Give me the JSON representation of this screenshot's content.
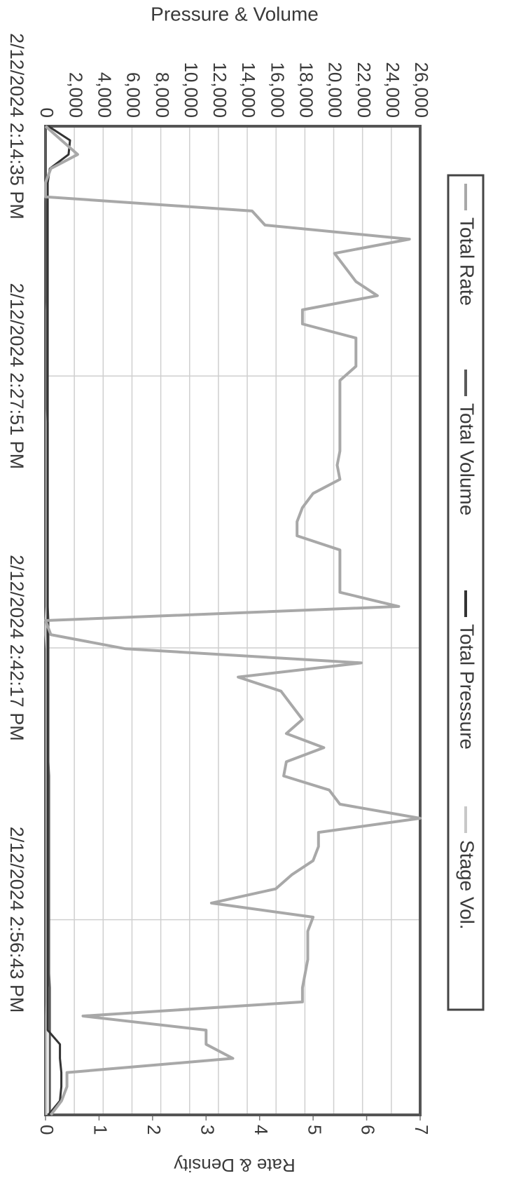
{
  "chart_data": {
    "type": "line",
    "ylabel": "Pressure & Volume",
    "y2label": "Rate & Density",
    "x": [
      "2/12/2024 2:14:35 PM",
      "2/12/2024 2:15:20 PM",
      "2/12/2024 2:16:05 PM",
      "2/12/2024 2:16:50 PM",
      "2/12/2024 2:17:35 PM",
      "2/12/2024 2:18:20 PM",
      "2/12/2024 2:19:05 PM",
      "2/12/2024 2:19:50 PM",
      "2/12/2024 2:20:35 PM",
      "2/12/2024 2:21:20 PM",
      "2/12/2024 2:22:05 PM",
      "2/12/2024 2:22:50 PM",
      "2/12/2024 2:23:35 PM",
      "2/12/2024 2:24:20 PM",
      "2/12/2024 2:25:05 PM",
      "2/12/2024 2:25:50 PM",
      "2/12/2024 2:26:35 PM",
      "2/12/2024 2:27:20 PM",
      "2/12/2024 2:28:05 PM",
      "2/12/2024 2:28:50 PM",
      "2/12/2024 2:29:35 PM",
      "2/12/2024 2:30:20 PM",
      "2/12/2024 2:31:05 PM",
      "2/12/2024 2:31:50 PM",
      "2/12/2024 2:32:35 PM",
      "2/12/2024 2:33:20 PM",
      "2/12/2024 2:34:05 PM",
      "2/12/2024 2:34:50 PM",
      "2/12/2024 2:35:35 PM",
      "2/12/2024 2:36:20 PM",
      "2/12/2024 2:37:05 PM",
      "2/12/2024 2:37:50 PM",
      "2/12/2024 2:38:35 PM",
      "2/12/2024 2:39:20 PM",
      "2/12/2024 2:40:05 PM",
      "2/12/2024 2:40:50 PM",
      "2/12/2024 2:41:35 PM",
      "2/12/2024 2:42:20 PM",
      "2/12/2024 2:43:05 PM",
      "2/12/2024 2:43:50 PM",
      "2/12/2024 2:44:35 PM",
      "2/12/2024 2:45:20 PM",
      "2/12/2024 2:46:05 PM",
      "2/12/2024 2:46:50 PM",
      "2/12/2024 2:47:35 PM",
      "2/12/2024 2:48:20 PM",
      "2/12/2024 2:49:05 PM",
      "2/12/2024 2:49:50 PM",
      "2/12/2024 2:50:35 PM",
      "2/12/2024 2:51:20 PM",
      "2/12/2024 2:52:05 PM",
      "2/12/2024 2:52:50 PM",
      "2/12/2024 2:53:35 PM",
      "2/12/2024 2:54:20 PM",
      "2/12/2024 2:55:05 PM",
      "2/12/2024 2:55:50 PM",
      "2/12/2024 2:56:35 PM",
      "2/12/2024 2:57:20 PM",
      "2/12/2024 2:58:05 PM",
      "2/12/2024 2:58:50 PM",
      "2/12/2024 2:59:35 PM",
      "2/12/2024 3:00:20 PM",
      "2/12/2024 3:01:05 PM",
      "2/12/2024 3:01:50 PM",
      "2/12/2024 3:02:35 PM",
      "2/12/2024 3:03:20 PM",
      "2/12/2024 3:04:05 PM",
      "2/12/2024 3:04:50 PM",
      "2/12/2024 3:05:35 PM",
      "2/12/2024 3:06:20 PM",
      "2/12/2024 3:07:05 PM"
    ],
    "xlim": [
      "2/12/2024 2:14:35 PM",
      "2/12/2024 3:07:05 PM"
    ],
    "xticks": [
      "2/12/2024 2:14:35 PM",
      "2/12/2024 2:27:51 PM",
      "2/12/2024 2:42:17 PM",
      "2/12/2024 2:56:43 PM"
    ],
    "ylim": [
      0,
      26000
    ],
    "yticks": [
      0,
      {
        "value": 2000,
        "label": "2,000"
      },
      {
        "value": 4000,
        "label": "4,000"
      },
      {
        "value": 6000,
        "label": "6,000"
      },
      {
        "value": 8000,
        "label": "8,000"
      },
      {
        "value": 10000,
        "label": "10,000"
      },
      {
        "value": 12000,
        "label": "12,000"
      },
      {
        "value": 14000,
        "label": "14,000"
      },
      {
        "value": 16000,
        "label": "16,000"
      },
      {
        "value": 18000,
        "label": "18,000"
      },
      {
        "value": 20000,
        "label": "20,000"
      },
      {
        "value": 22000,
        "label": "22,000"
      },
      {
        "value": 24000,
        "label": "24,000"
      },
      {
        "value": 26000,
        "label": "26,000"
      }
    ],
    "y2lim": [
      0,
      7
    ],
    "y2ticks": [
      0,
      1,
      2,
      3,
      4,
      5,
      6,
      7
    ],
    "grid": true,
    "legend": "right",
    "series": [
      {
        "name": "Total Rate",
        "color": "#a8a8a8",
        "axis": "y2",
        "values": [
          0,
          0.3,
          0.6,
          0.1,
          0,
          0,
          3.86,
          4.1,
          6.8,
          5.4,
          5.6,
          5.8,
          6.2,
          4.8,
          4.8,
          5.8,
          5.8,
          5.8,
          5.5,
          5.5,
          5.5,
          5.5,
          5.5,
          5.5,
          5.45,
          5.5,
          5.0,
          4.8,
          4.7,
          4.7,
          5.5,
          5.5,
          5.5,
          5.5,
          6.6,
          0,
          0.1,
          1.5,
          5.9,
          3.6,
          4.4,
          4.6,
          4.8,
          4.5,
          5.2,
          4.5,
          4.45,
          5.3,
          5.5,
          7.0,
          5.1,
          5.1,
          5.0,
          4.6,
          4.3,
          3.1,
          5.0,
          4.9,
          4.9,
          4.9,
          4.85,
          4.8,
          4.8,
          0.7,
          3.0,
          3.0,
          3.5,
          0.4,
          0.4,
          0.3,
          0.1
        ]
      },
      {
        "name": "Total Volume",
        "color": "#5a5a5a",
        "values": [
          0,
          0,
          0,
          0,
          0,
          0,
          50,
          50,
          50,
          50,
          50,
          50,
          50,
          100,
          100,
          100,
          100,
          100,
          100,
          100,
          100,
          150,
          150,
          150,
          150,
          150,
          150,
          150,
          150,
          150,
          150,
          150,
          150,
          150,
          150,
          200,
          200,
          200,
          200,
          200,
          200,
          200,
          200,
          200,
          200,
          200,
          250,
          250,
          250,
          250,
          250,
          250,
          250,
          250,
          250,
          250,
          250,
          250,
          250,
          250,
          250,
          300,
          300,
          300,
          300,
          300,
          300,
          300,
          300,
          300,
          300
        ]
      },
      {
        "name": "Total Pressure",
        "color": "#333333",
        "values": [
          200,
          1700,
          1600,
          300,
          150,
          150,
          150,
          150,
          150,
          150,
          150,
          150,
          150,
          150,
          150,
          150,
          150,
          150,
          150,
          150,
          150,
          150,
          150,
          150,
          150,
          150,
          150,
          150,
          150,
          150,
          150,
          150,
          150,
          150,
          150,
          150,
          150,
          150,
          150,
          150,
          150,
          150,
          150,
          150,
          150,
          150,
          150,
          150,
          150,
          150,
          150,
          150,
          150,
          150,
          150,
          150,
          150,
          150,
          150,
          150,
          150,
          150,
          150,
          150,
          150,
          1000,
          1000,
          1100,
          1100,
          1000,
          200
        ]
      },
      {
        "name": "Stage Vol.",
        "color": "#c8c8c8",
        "values": [
          0,
          0,
          0,
          0,
          0,
          0,
          80,
          80,
          80,
          80,
          80,
          80,
          80,
          80,
          80,
          80,
          80,
          80,
          80,
          80,
          80,
          80,
          80,
          80,
          80,
          80,
          80,
          80,
          80,
          80,
          80,
          80,
          80,
          80,
          80,
          0,
          0,
          80,
          80,
          80,
          80,
          80,
          80,
          80,
          80,
          80,
          80,
          80,
          80,
          80,
          80,
          80,
          80,
          80,
          80,
          80,
          80,
          80,
          80,
          80,
          80,
          80,
          80,
          60,
          60,
          60,
          60,
          60,
          60,
          60,
          60
        ]
      }
    ]
  }
}
